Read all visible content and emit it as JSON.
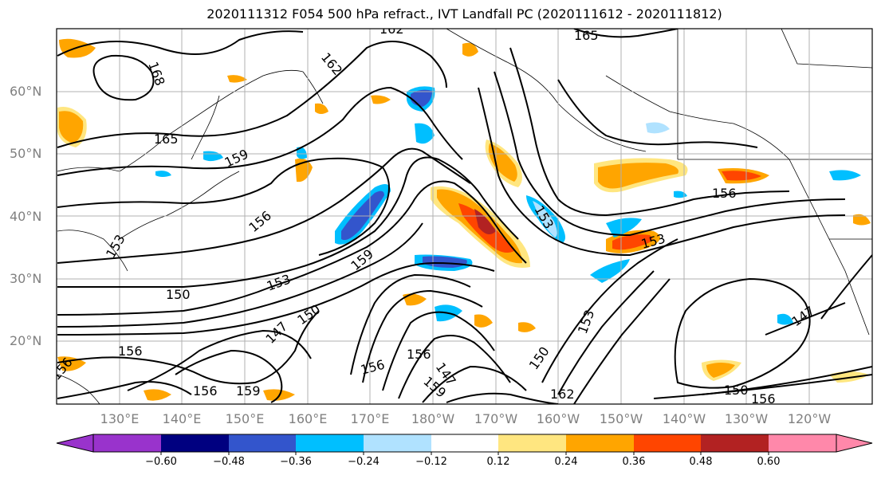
{
  "title": "2020111312 F054 500 hPa refract., IVT Landfall PC (2020111612 - 2020111812)",
  "lat_labels": [
    "60°N",
    "50°N",
    "40°N",
    "30°N",
    "20°N"
  ],
  "lon_labels": [
    "130°E",
    "140°E",
    "150°E",
    "160°E",
    "170°E",
    "180°W",
    "170°W",
    "160°W",
    "150°W",
    "140°W",
    "130°W",
    "120°W"
  ],
  "contour_labels": [
    "162",
    "165",
    "162",
    "168",
    "165",
    "159",
    "156",
    "153",
    "150",
    "159",
    "153",
    "150",
    "147",
    "156",
    "156",
    "156",
    "159",
    "156",
    "147",
    "159",
    "150",
    "162",
    "147",
    "150",
    "156",
    "156",
    "153",
    "153",
    "153",
    "156"
  ],
  "colorbar": {
    "ticks": [
      "−0.60",
      "−0.48",
      "−0.36",
      "−0.24",
      "−0.12",
      "0.12",
      "0.24",
      "0.36",
      "0.48",
      "0.60"
    ],
    "colors": [
      "#9933cc",
      "#000080",
      "#3355cc",
      "#00bfff",
      "#b0e2ff",
      "#ffffff",
      "#ffe680",
      "#ffa500",
      "#ff4500",
      "#b22222",
      "#ff88aa"
    ]
  }
}
